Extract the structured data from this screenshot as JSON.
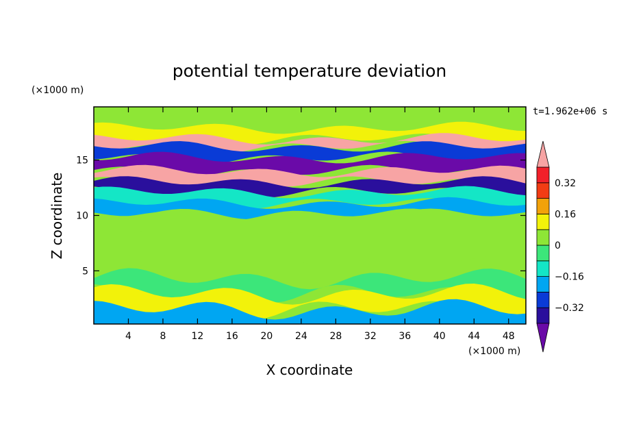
{
  "chart_data": {
    "type": "heatmap",
    "title": "potential temperature deviation",
    "time_label": "t=1.962e+06 s",
    "xlabel": "X coordinate",
    "ylabel": "Z coordinate",
    "x_unit": "(×1000 m)",
    "y_unit": "(×1000 m)",
    "xlim": [
      0,
      50
    ],
    "ylim": [
      0.2,
      19.8
    ],
    "x_ticks": [
      4,
      8,
      12,
      16,
      20,
      24,
      28,
      32,
      36,
      40,
      44,
      48
    ],
    "y_ticks": [
      5,
      10,
      15
    ],
    "colorbar": {
      "levels": [
        -0.4,
        -0.32,
        -0.24,
        -0.16,
        -0.08,
        0,
        0.08,
        0.16,
        0.24,
        0.32,
        0.4
      ],
      "tick_labels": [
        "0.32",
        "0.16",
        "0",
        "−0.16",
        "−0.32"
      ],
      "tick_values": [
        0.32,
        0.16,
        0,
        -0.16,
        -0.32
      ],
      "colors": [
        "#6a0aa8",
        "#2a0f9c",
        "#0a3bd6",
        "#00a6f2",
        "#14e6c6",
        "#3ce67a",
        "#8ee636",
        "#f2f20a",
        "#f2a20a",
        "#f23c14",
        "#f2202a",
        "#f7a4a4"
      ],
      "extend": "both"
    },
    "bands": [
      {
        "z": 18.6,
        "value": 0.04
      },
      {
        "z": 17.2,
        "value": 0.1
      },
      {
        "z": 16.6,
        "value": 0.45
      },
      {
        "z": 15.8,
        "value": -0.3
      },
      {
        "z": 14.6,
        "value": -0.45
      },
      {
        "z": 13.4,
        "value": 0.45
      },
      {
        "z": 12.6,
        "value": -0.35
      },
      {
        "z": 11.6,
        "value": -0.12
      },
      {
        "z": 10.6,
        "value": -0.18
      },
      {
        "z": 9.6,
        "value": 0.06
      },
      {
        "z": 7.0,
        "value": 0.06
      },
      {
        "z": 5.0,
        "value": 0.02
      },
      {
        "z": 3.6,
        "value": -0.05
      },
      {
        "z": 2.2,
        "value": 0.1
      },
      {
        "z": 0.8,
        "value": -0.2
      }
    ]
  }
}
